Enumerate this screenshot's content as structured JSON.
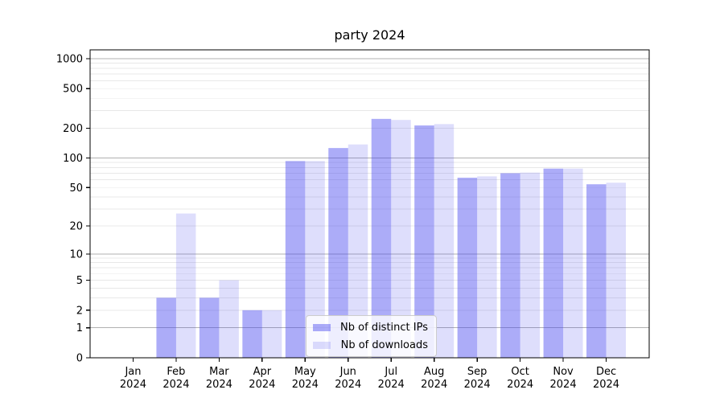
{
  "title": "party 2024",
  "chart_data": {
    "type": "bar",
    "title": "party 2024",
    "scale": "log-like (log10 of 1+value), 0 at baseline",
    "months": [
      "Jan",
      "Feb",
      "Mar",
      "Apr",
      "May",
      "Jun",
      "Jul",
      "Aug",
      "Sep",
      "Oct",
      "Nov",
      "Dec"
    ],
    "year": "2024",
    "series": [
      {
        "name": "Nb of distinct IPs",
        "color": "rgba(70,70,240,0.45)",
        "values": [
          0,
          3,
          3,
          2,
          93,
          126,
          248,
          213,
          63,
          70,
          78,
          54
        ]
      },
      {
        "name": "Nb of downloads",
        "color": "rgba(70,70,240,0.18)",
        "values": [
          0,
          27,
          5,
          2,
          93,
          137,
          242,
          220,
          65,
          71,
          78,
          56
        ]
      }
    ],
    "yticks": [
      1000,
      500,
      200,
      100,
      50,
      20,
      10,
      5,
      2,
      1,
      0
    ],
    "ylim": [
      0,
      1375
    ],
    "xlabel": "",
    "ylabel": "",
    "legend_position": "lower center",
    "grid": "horizontal gridlines: major at powers of 10, faint minors between"
  },
  "colors": {
    "background": "#ffffff",
    "axis": "#000000",
    "grid_major": "#b0b0b0",
    "grid_minor": "#e8e8e8",
    "bar_distinct_ips": "rgba(70,70,240,0.45)",
    "bar_downloads": "rgba(70,70,240,0.18)",
    "text": "#000000"
  }
}
